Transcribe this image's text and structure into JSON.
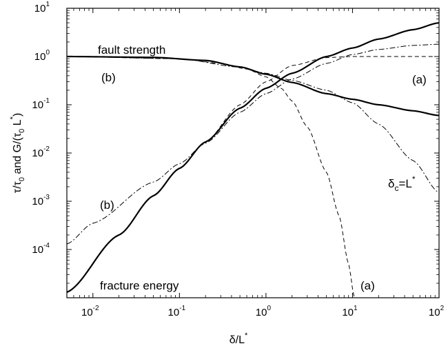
{
  "chart_data": {
    "type": "line",
    "x_scale": "log",
    "y_scale": "log",
    "xlim": [
      0.005,
      100
    ],
    "ylim": [
      1e-05,
      10
    ],
    "grid": false,
    "x_ticks": [
      {
        "base": "10",
        "exp": "-2",
        "value": 0.01
      },
      {
        "base": "10",
        "exp": "-1",
        "value": 0.1
      },
      {
        "base": "10",
        "exp": "0",
        "value": 1
      },
      {
        "base": "10",
        "exp": "1",
        "value": 10
      },
      {
        "base": "10",
        "exp": "2",
        "value": 100
      }
    ],
    "y_ticks": [
      {
        "base": "10",
        "exp": "-4",
        "value": 0.0001
      },
      {
        "base": "10",
        "exp": "-3",
        "value": 0.001
      },
      {
        "base": "10",
        "exp": "-2",
        "value": 0.01
      },
      {
        "base": "10",
        "exp": "-1",
        "value": 0.1
      },
      {
        "base": "10",
        "exp": "0",
        "value": 1
      },
      {
        "base": "10",
        "exp": "1",
        "value": 10
      }
    ],
    "xlabel": {
      "main": "δ/L",
      "sup": "*"
    },
    "ylabel": {
      "p1": "τ/τ",
      "s1": "0",
      "p2": " and G/(τ",
      "s2": "0",
      "p3": " L",
      "sup": "*",
      "p4": ")"
    },
    "annotations": {
      "fault_strength": "fault strength",
      "fracture_energy": "fracture energy",
      "b_top": "(b)",
      "a_top": "(a)",
      "b_mid": "(b)",
      "a_bottom": "(a)",
      "delta_c": {
        "main": "δ",
        "sub": "c",
        "eq": "=L",
        "sup": "*"
      }
    },
    "series": [
      {
        "style": "solid",
        "x": [
          0.005,
          0.05,
          0.2,
          0.5,
          1,
          2,
          5,
          10,
          20,
          50,
          100
        ],
        "y": [
          1.0,
          0.96,
          0.83,
          0.61,
          0.43,
          0.29,
          0.17,
          0.13,
          0.1,
          0.075,
          0.06
        ]
      },
      {
        "style": "solid",
        "x": [
          0.005,
          0.02,
          0.05,
          0.1,
          0.2,
          0.5,
          1,
          2,
          5,
          10,
          20,
          50,
          100
        ],
        "y": [
          1.3e-05,
          0.0002,
          0.0013,
          0.0048,
          0.017,
          0.085,
          0.22,
          0.45,
          1.0,
          1.5,
          2.3,
          3.6,
          5.0
        ]
      },
      {
        "style": "dashed",
        "x": [
          0.005,
          0.1,
          0.3,
          0.6,
          1,
          1.5,
          2,
          3,
          5,
          7,
          9,
          10.5
        ],
        "y": [
          1.0,
          0.9,
          0.72,
          0.55,
          0.38,
          0.22,
          0.12,
          0.035,
          0.004,
          0.0005,
          5e-05,
          1e-05
        ]
      },
      {
        "style": "dashed",
        "x": [
          0.005,
          0.02,
          0.05,
          0.1,
          0.2,
          0.5,
          1,
          2,
          5,
          10,
          100
        ],
        "y": [
          1.3e-05,
          0.0002,
          0.0013,
          0.0048,
          0.017,
          0.1,
          0.3,
          0.65,
          0.95,
          1.0,
          1.0
        ]
      },
      {
        "style": "dashdot",
        "x": [
          0.005,
          0.1,
          0.5,
          1,
          2,
          5,
          10,
          20,
          50,
          100
        ],
        "y": [
          1.0,
          0.9,
          0.6,
          0.45,
          0.32,
          0.2,
          0.11,
          0.04,
          0.007,
          0.0015
        ]
      },
      {
        "style": "dashdot",
        "x": [
          0.005,
          0.01,
          0.05,
          0.1,
          0.2,
          0.5,
          1,
          2,
          5,
          10,
          20,
          50,
          100
        ],
        "y": [
          0.00013,
          0.00035,
          0.0025,
          0.006,
          0.016,
          0.07,
          0.17,
          0.34,
          0.72,
          1.1,
          1.4,
          1.7,
          1.8
        ]
      }
    ]
  }
}
